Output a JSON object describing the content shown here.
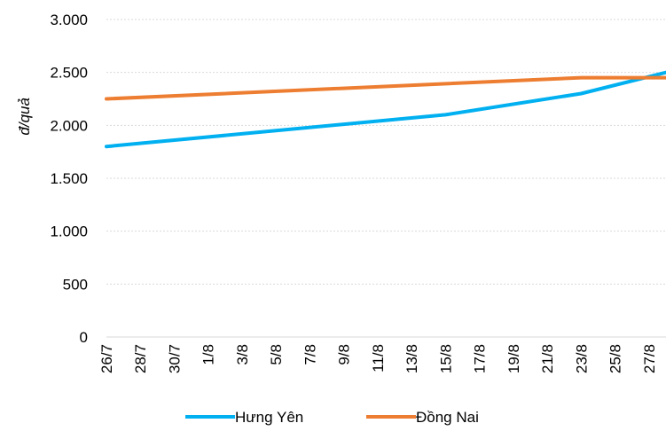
{
  "chart_data": {
    "type": "line",
    "ylabel": "đ/quả",
    "ylim": [
      0,
      3000
    ],
    "yticks": [
      0,
      500,
      1000,
      1500,
      2000,
      2500,
      3000
    ],
    "ytick_labels": [
      "0",
      "500",
      "1.000",
      "1.500",
      "2.000",
      "2.500",
      "3.000"
    ],
    "categories": [
      "26/7",
      "28/7",
      "30/7",
      "1/8",
      "3/8",
      "5/8",
      "7/8",
      "9/8",
      "11/8",
      "13/8",
      "15/8",
      "17/8",
      "19/8",
      "21/8",
      "23/8",
      "25/8",
      "27/8"
    ],
    "x_days": [
      0,
      2,
      4,
      6,
      8,
      10,
      12,
      14,
      16,
      18,
      20,
      22,
      24,
      26,
      28,
      30,
      32
    ],
    "x_end_day": 33,
    "grid": true,
    "legend_position": "bottom",
    "series": [
      {
        "name": "Hưng Yên",
        "color": "#00B0F0",
        "points": [
          [
            0,
            1800
          ],
          [
            20,
            2100
          ],
          [
            28,
            2300
          ],
          [
            33,
            2500
          ]
        ]
      },
      {
        "name": "Đồng Nai",
        "color": "#ED7D31",
        "points": [
          [
            0,
            2250
          ],
          [
            28,
            2450
          ],
          [
            33,
            2450
          ]
        ]
      }
    ]
  }
}
